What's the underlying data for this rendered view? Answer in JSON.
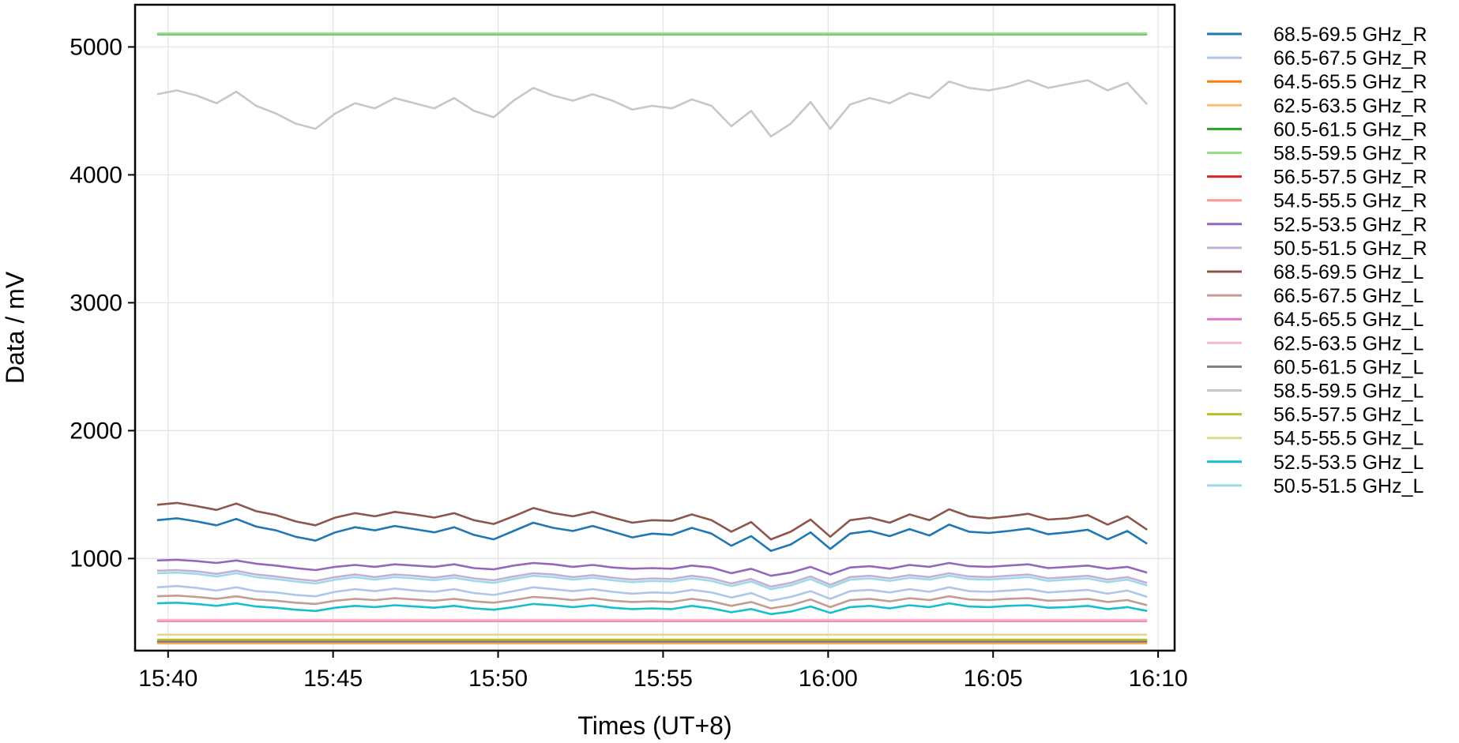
{
  "chart_data": {
    "type": "line",
    "title": "",
    "xlabel": "Times (UT+8)",
    "ylabel": "Data / mV",
    "x_ticks": [
      "15:40",
      "15:45",
      "15:50",
      "15:55",
      "16:00",
      "16:05",
      "16:10"
    ],
    "y_ticks": [
      1000,
      2000,
      3000,
      4000,
      5000
    ],
    "xlim": [
      "15:39:00",
      "16:10:30"
    ],
    "ylim": [
      280,
      5330
    ],
    "grid": true,
    "legend_position": "outside-right",
    "x_time_range": [
      "15:39:40",
      "16:09:40"
    ],
    "series": [
      {
        "name": "68.5-69.5 GHz_R",
        "color": "#1f77b4",
        "values": [
          1300,
          1315,
          1290,
          1260,
          1310,
          1250,
          1220,
          1170,
          1140,
          1205,
          1245,
          1220,
          1255,
          1230,
          1205,
          1245,
          1185,
          1150,
          1215,
          1280,
          1240,
          1215,
          1255,
          1210,
          1165,
          1195,
          1185,
          1240,
          1195,
          1100,
          1175,
          1060,
          1110,
          1205,
          1075,
          1195,
          1215,
          1175,
          1230,
          1180,
          1265,
          1210,
          1200,
          1215,
          1235,
          1190,
          1205,
          1225,
          1150,
          1215,
          1115
        ]
      },
      {
        "name": "66.5-67.5 GHz_R",
        "color": "#aec7e8",
        "values": [
          775,
          785,
          770,
          750,
          775,
          745,
          735,
          715,
          705,
          740,
          760,
          745,
          765,
          750,
          740,
          760,
          730,
          715,
          745,
          775,
          760,
          745,
          760,
          740,
          725,
          735,
          730,
          755,
          735,
          695,
          730,
          670,
          700,
          745,
          685,
          745,
          755,
          735,
          760,
          740,
          775,
          745,
          740,
          750,
          760,
          735,
          745,
          755,
          725,
          750,
          700
        ]
      },
      {
        "name": "64.5-65.5 GHz_R",
        "color": "#ff7f0e",
        "values": [
          338,
          338,
          338,
          338,
          338,
          338,
          338,
          338,
          338,
          338,
          338,
          338,
          338,
          338,
          338,
          338,
          338,
          338,
          338,
          338,
          338,
          338,
          338,
          338,
          338,
          338,
          338,
          338,
          338,
          338,
          338,
          338,
          338,
          338,
          338,
          338,
          338,
          338,
          338,
          338,
          338,
          338,
          338,
          338,
          338,
          338,
          338,
          338,
          338,
          338,
          338
        ]
      },
      {
        "name": "62.5-63.5 GHz_R",
        "color": "#ffbb78",
        "values": [
          343,
          343,
          343,
          343,
          343,
          343,
          343,
          343,
          343,
          343,
          343,
          343,
          343,
          343,
          343,
          343,
          343,
          343,
          343,
          343,
          343,
          343,
          343,
          343,
          343,
          343,
          343,
          343,
          343,
          343,
          343,
          343,
          343,
          343,
          343,
          343,
          343,
          343,
          343,
          343,
          343,
          343,
          343,
          343,
          343,
          343,
          343,
          343,
          343,
          343,
          343
        ]
      },
      {
        "name": "60.5-61.5 GHz_R",
        "color": "#2ca02c",
        "values": [
          5100,
          5100,
          5100,
          5100,
          5100,
          5100,
          5100,
          5100,
          5100,
          5100,
          5100,
          5100,
          5100,
          5100,
          5100,
          5100,
          5100,
          5100,
          5100,
          5100,
          5100,
          5100,
          5100,
          5100,
          5100,
          5100,
          5100,
          5100,
          5100,
          5100,
          5100,
          5100,
          5100,
          5100,
          5100,
          5100,
          5100,
          5100,
          5100,
          5100,
          5100,
          5100,
          5100,
          5100,
          5100,
          5100,
          5100,
          5100,
          5100,
          5100,
          5100
        ]
      },
      {
        "name": "58.5-59.5 GHz_R",
        "color": "#98df8a",
        "values": [
          5105,
          5105,
          5105,
          5105,
          5105,
          5105,
          5105,
          5105,
          5105,
          5105,
          5105,
          5105,
          5105,
          5105,
          5105,
          5105,
          5105,
          5105,
          5105,
          5105,
          5105,
          5105,
          5105,
          5105,
          5105,
          5105,
          5105,
          5105,
          5105,
          5105,
          5105,
          5105,
          5105,
          5105,
          5105,
          5105,
          5105,
          5105,
          5105,
          5105,
          5105,
          5105,
          5105,
          5105,
          5105,
          5105,
          5105,
          5105,
          5105,
          5105,
          5105
        ]
      },
      {
        "name": "56.5-57.5 GHz_R",
        "color": "#d62728",
        "values": [
          355,
          355,
          355,
          355,
          355,
          355,
          355,
          355,
          355,
          355,
          355,
          355,
          355,
          355,
          355,
          355,
          355,
          355,
          355,
          355,
          355,
          355,
          355,
          355,
          355,
          355,
          355,
          355,
          355,
          355,
          355,
          355,
          355,
          355,
          355,
          355,
          355,
          355,
          355,
          355,
          355,
          355,
          355,
          355,
          355,
          355,
          355,
          355,
          355,
          355,
          355
        ]
      },
      {
        "name": "54.5-55.5 GHz_R",
        "color": "#ff9896",
        "values": [
          510,
          510,
          510,
          510,
          510,
          510,
          510,
          510,
          510,
          510,
          510,
          510,
          510,
          510,
          510,
          510,
          510,
          510,
          510,
          510,
          510,
          510,
          510,
          510,
          510,
          510,
          510,
          510,
          510,
          510,
          510,
          510,
          510,
          510,
          510,
          510,
          510,
          510,
          510,
          510,
          510,
          510,
          510,
          510,
          510,
          510,
          510,
          510,
          510,
          510,
          510
        ]
      },
      {
        "name": "52.5-53.5 GHz_R",
        "color": "#9467bd",
        "values": [
          985,
          990,
          980,
          965,
          985,
          960,
          945,
          925,
          910,
          935,
          950,
          935,
          955,
          945,
          935,
          955,
          925,
          915,
          945,
          965,
          955,
          935,
          950,
          930,
          920,
          925,
          920,
          945,
          930,
          885,
          920,
          865,
          890,
          935,
          875,
          930,
          940,
          920,
          950,
          935,
          965,
          940,
          935,
          945,
          955,
          925,
          935,
          945,
          920,
          935,
          890
        ]
      },
      {
        "name": "50.5-51.5 GHz_R",
        "color": "#c5b0d5",
        "values": [
          905,
          910,
          900,
          880,
          905,
          875,
          860,
          840,
          825,
          855,
          875,
          855,
          875,
          865,
          850,
          870,
          845,
          830,
          860,
          885,
          875,
          855,
          870,
          850,
          835,
          845,
          840,
          865,
          845,
          805,
          840,
          780,
          810,
          860,
          795,
          855,
          865,
          845,
          870,
          855,
          885,
          860,
          855,
          865,
          875,
          845,
          855,
          865,
          835,
          855,
          810
        ]
      },
      {
        "name": "68.5-69.5 GHz_L",
        "color": "#8c564b",
        "values": [
          1420,
          1435,
          1410,
          1380,
          1430,
          1370,
          1340,
          1290,
          1260,
          1320,
          1355,
          1330,
          1365,
          1345,
          1320,
          1355,
          1300,
          1270,
          1330,
          1395,
          1355,
          1330,
          1365,
          1320,
          1280,
          1300,
          1295,
          1345,
          1300,
          1210,
          1285,
          1150,
          1210,
          1305,
          1170,
          1300,
          1320,
          1280,
          1345,
          1300,
          1385,
          1330,
          1315,
          1330,
          1350,
          1305,
          1315,
          1340,
          1265,
          1330,
          1225
        ]
      },
      {
        "name": "66.5-67.5 GHz_L",
        "color": "#c49c94",
        "values": [
          705,
          710,
          700,
          685,
          705,
          680,
          670,
          655,
          645,
          670,
          685,
          675,
          690,
          680,
          670,
          685,
          665,
          655,
          675,
          700,
          690,
          675,
          690,
          670,
          660,
          665,
          660,
          685,
          665,
          630,
          660,
          610,
          635,
          680,
          620,
          675,
          685,
          665,
          690,
          675,
          705,
          680,
          675,
          685,
          690,
          670,
          675,
          685,
          660,
          675,
          635
        ]
      },
      {
        "name": "64.5-65.5 GHz_L",
        "color": "#e377c2",
        "values": [
          515,
          515,
          515,
          515,
          515,
          515,
          515,
          515,
          515,
          515,
          515,
          515,
          515,
          515,
          515,
          515,
          515,
          515,
          515,
          515,
          515,
          515,
          515,
          515,
          515,
          515,
          515,
          515,
          515,
          515,
          515,
          515,
          515,
          515,
          515,
          515,
          515,
          515,
          515,
          515,
          515,
          515,
          515,
          515,
          515,
          515,
          515,
          515,
          515,
          515,
          515
        ]
      },
      {
        "name": "62.5-63.5 GHz_L",
        "color": "#f7b6d2",
        "values": [
          520,
          520,
          520,
          520,
          520,
          520,
          520,
          520,
          520,
          520,
          520,
          520,
          520,
          520,
          520,
          520,
          520,
          520,
          520,
          520,
          520,
          520,
          520,
          520,
          520,
          520,
          520,
          520,
          520,
          520,
          520,
          520,
          520,
          520,
          520,
          520,
          520,
          520,
          520,
          520,
          520,
          520,
          520,
          520,
          520,
          520,
          520,
          520,
          520,
          520,
          520
        ]
      },
      {
        "name": "60.5-61.5 GHz_L",
        "color": "#7f7f7f",
        "values": [
          350,
          350,
          350,
          350,
          350,
          350,
          350,
          350,
          350,
          350,
          350,
          350,
          350,
          350,
          350,
          350,
          350,
          350,
          350,
          350,
          350,
          350,
          350,
          350,
          350,
          350,
          350,
          350,
          350,
          350,
          350,
          350,
          350,
          350,
          350,
          350,
          350,
          350,
          350,
          350,
          350,
          350,
          350,
          350,
          350,
          350,
          350,
          350,
          350,
          350,
          350
        ]
      },
      {
        "name": "58.5-59.5 GHz_L",
        "color": "#c7c7c7",
        "values": [
          4630,
          4660,
          4620,
          4560,
          4650,
          4540,
          4480,
          4400,
          4360,
          4480,
          4560,
          4520,
          4600,
          4560,
          4520,
          4600,
          4500,
          4450,
          4580,
          4680,
          4620,
          4580,
          4630,
          4580,
          4510,
          4540,
          4520,
          4590,
          4540,
          4380,
          4500,
          4300,
          4400,
          4570,
          4360,
          4550,
          4600,
          4560,
          4640,
          4600,
          4730,
          4680,
          4660,
          4690,
          4740,
          4680,
          4710,
          4740,
          4660,
          4720,
          4550
        ]
      },
      {
        "name": "56.5-57.5 GHz_L",
        "color": "#bcbd22",
        "values": [
          365,
          365,
          365,
          365,
          365,
          365,
          365,
          365,
          365,
          365,
          365,
          365,
          365,
          365,
          365,
          365,
          365,
          365,
          365,
          365,
          365,
          365,
          365,
          365,
          365,
          365,
          365,
          365,
          365,
          365,
          365,
          365,
          365,
          365,
          365,
          365,
          365,
          365,
          365,
          365,
          365,
          365,
          365,
          365,
          365,
          365,
          365,
          365,
          365,
          365,
          365
        ]
      },
      {
        "name": "54.5-55.5 GHz_L",
        "color": "#dbdb8d",
        "values": [
          405,
          405,
          405,
          405,
          405,
          405,
          405,
          405,
          405,
          405,
          405,
          405,
          405,
          405,
          405,
          405,
          405,
          405,
          405,
          405,
          405,
          405,
          405,
          405,
          405,
          405,
          405,
          405,
          405,
          405,
          405,
          405,
          405,
          405,
          405,
          405,
          405,
          405,
          405,
          405,
          405,
          405,
          405,
          405,
          405,
          405,
          405,
          405,
          405,
          405,
          405
        ]
      },
      {
        "name": "52.5-53.5 GHz_L",
        "color": "#17becf",
        "values": [
          650,
          655,
          645,
          630,
          650,
          625,
          615,
          600,
          590,
          615,
          630,
          620,
          635,
          625,
          615,
          630,
          610,
          600,
          620,
          645,
          635,
          620,
          635,
          615,
          605,
          610,
          605,
          630,
          610,
          580,
          605,
          565,
          585,
          625,
          575,
          620,
          630,
          610,
          635,
          620,
          650,
          625,
          620,
          630,
          635,
          615,
          620,
          630,
          605,
          620,
          590
        ]
      },
      {
        "name": "50.5-51.5 GHz_L",
        "color": "#9edae5",
        "values": [
          885,
          890,
          880,
          860,
          885,
          855,
          840,
          820,
          805,
          835,
          855,
          835,
          855,
          845,
          830,
          850,
          825,
          810,
          840,
          865,
          855,
          835,
          850,
          830,
          815,
          825,
          820,
          845,
          825,
          785,
          820,
          760,
          790,
          840,
          775,
          835,
          845,
          825,
          850,
          835,
          865,
          840,
          835,
          845,
          855,
          825,
          835,
          845,
          815,
          835,
          790
        ]
      }
    ]
  }
}
